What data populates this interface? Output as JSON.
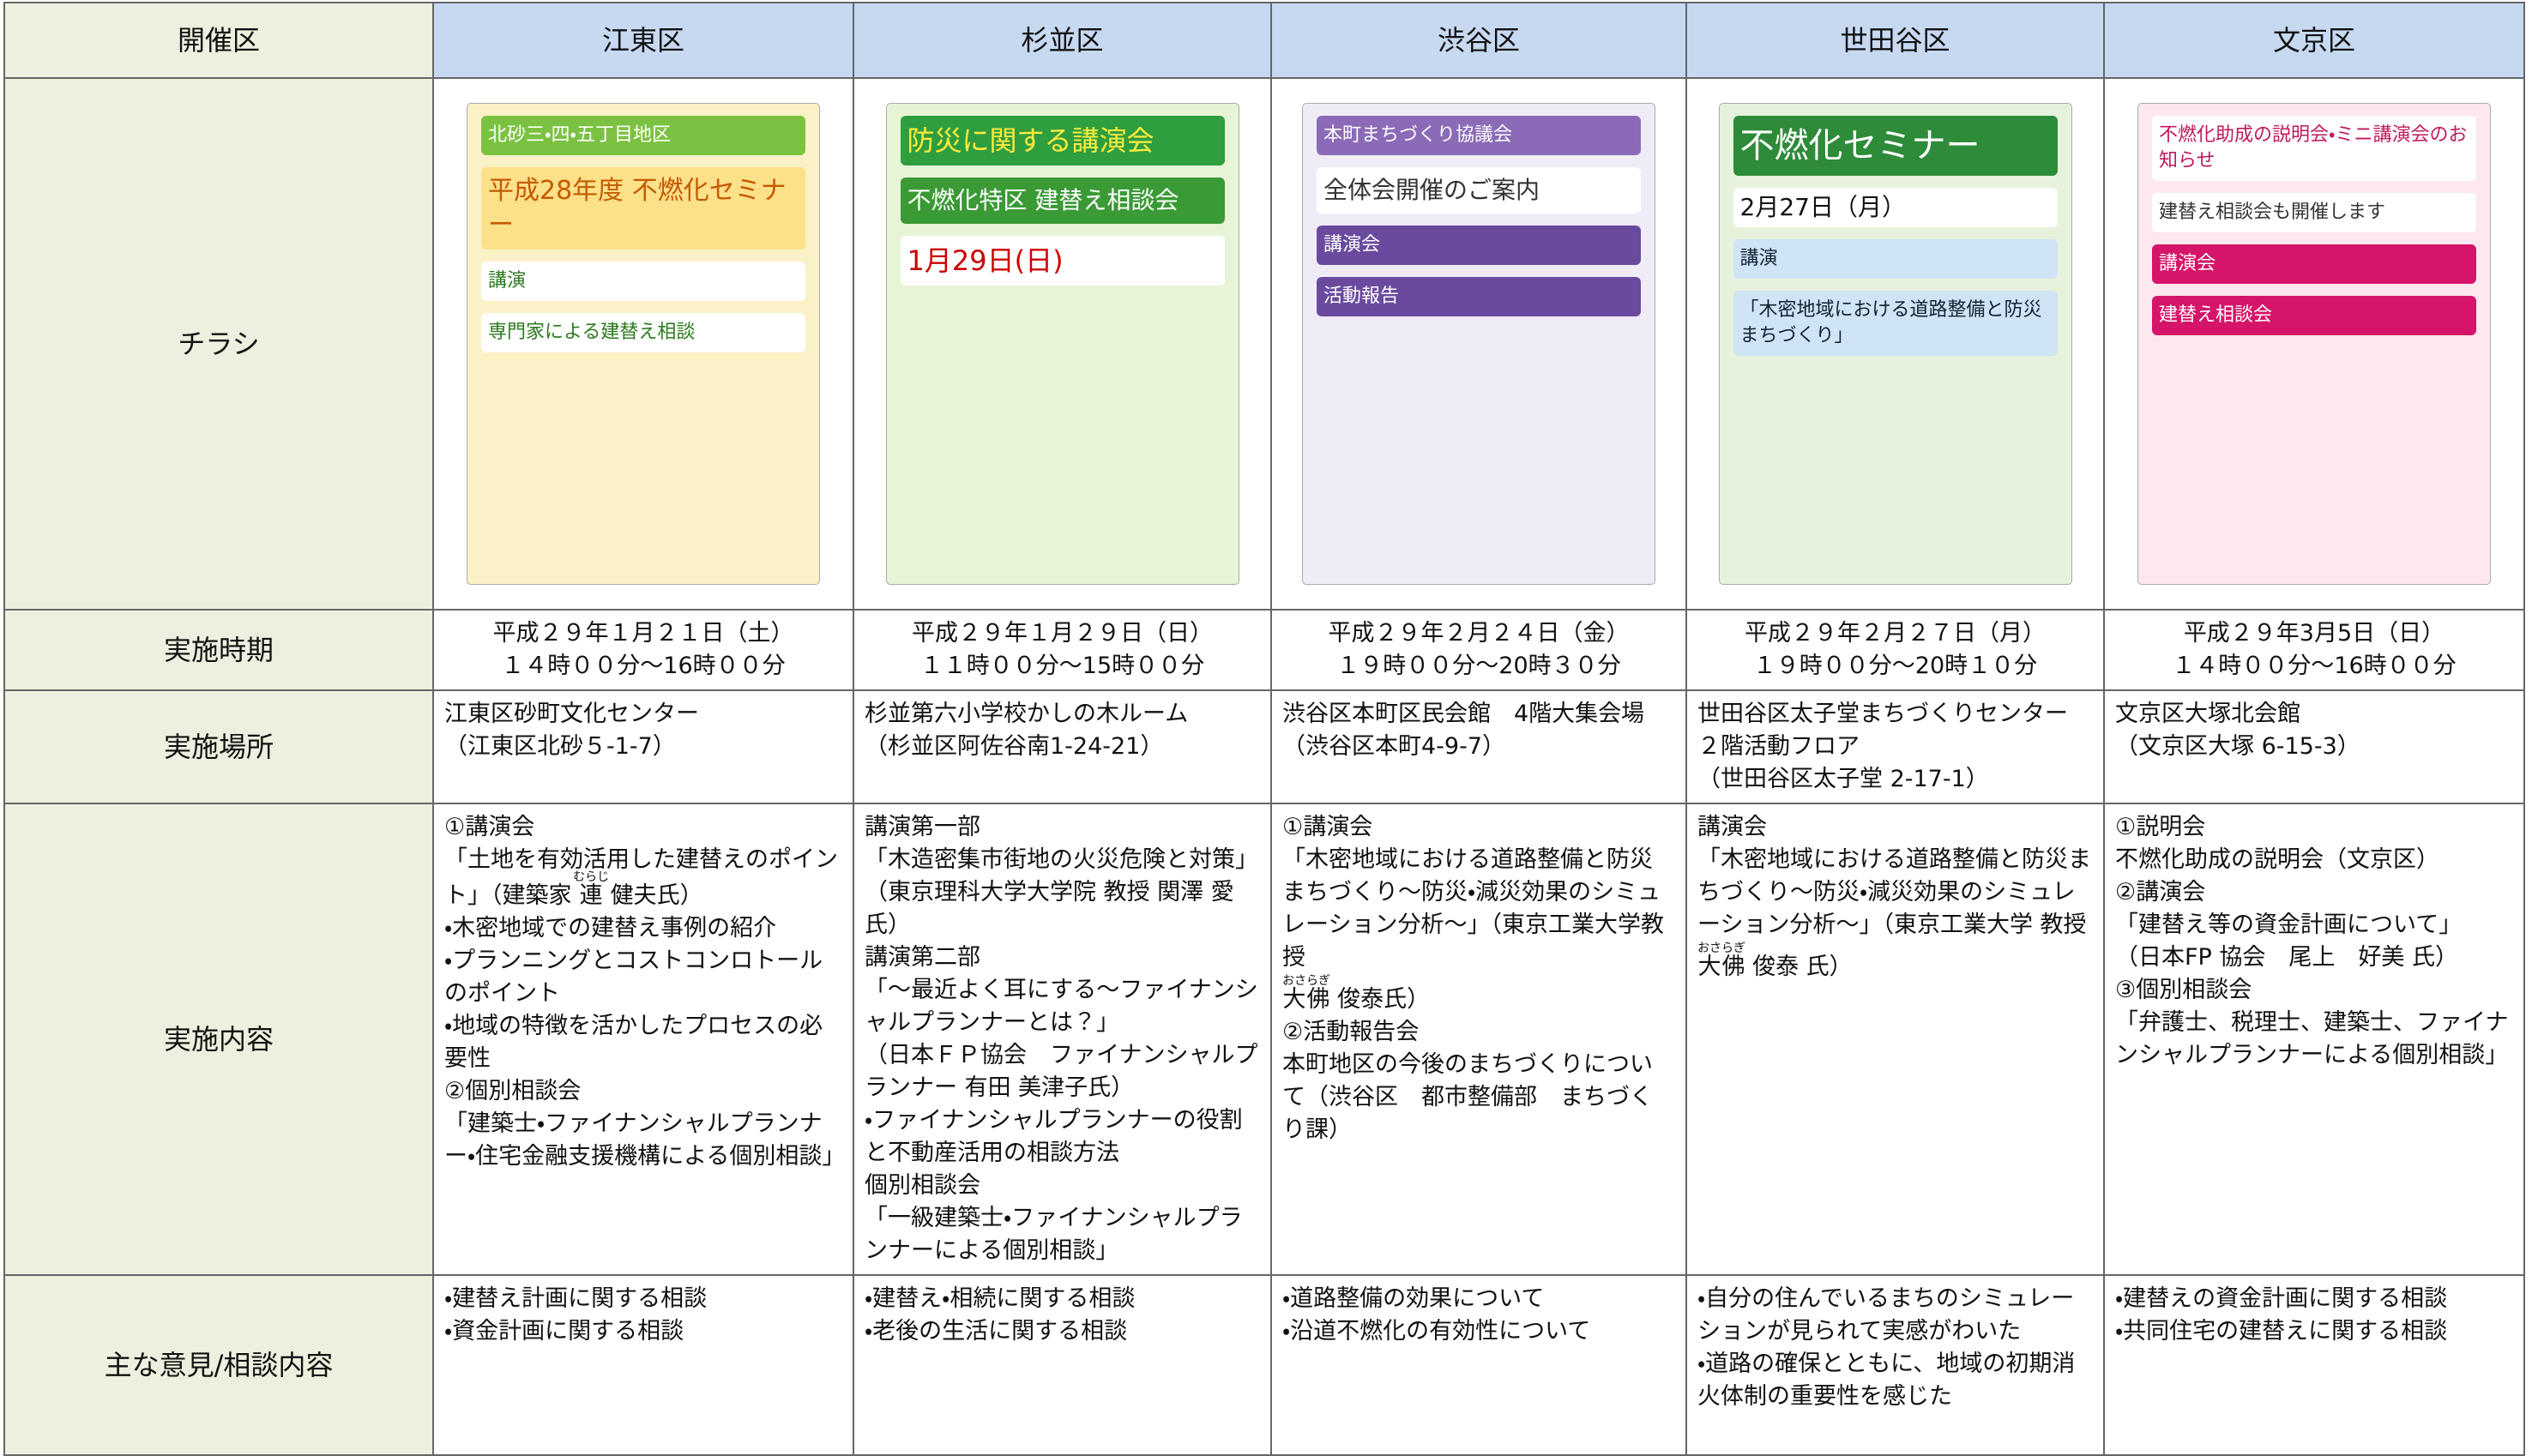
{
  "table": {
    "header": [
      "開催区",
      "江東区",
      "杉並区",
      "渋谷区",
      "世田谷区",
      "文京区"
    ],
    "flyer_label": "チラシ",
    "flyers": [
      {
        "lines": [
          "北砂三・四・五丁目地区",
          "平成28年度 不燃化セミナー",
          "講演",
          "専門家による建替え相談"
        ]
      },
      {
        "lines": [
          "防災に関する講演会",
          "不燃化特区 建替え相談会",
          "1月29日(日)"
        ]
      },
      {
        "lines": [
          "本町まちづくり協議会",
          "全体会開催のご案内",
          "講演会",
          "活動報告"
        ]
      },
      {
        "lines": [
          "不燃化セミナー",
          "2月27日（月）",
          "講演",
          "「木密地域における道路整備と防災まちづくり」"
        ]
      },
      {
        "lines": [
          "不燃化助成の説明会・ミニ講演会のお知らせ",
          "建替え相談会も開催します",
          "講演会",
          "建替え相談会"
        ]
      }
    ],
    "rows": [
      {
        "label": "実施時期",
        "cells": [
          [
            "平成２９年１月２１日（土）",
            "１４時００分～16時００分"
          ],
          [
            "平成２９年１月２９日（日）",
            "１１時００分～15時００分"
          ],
          [
            "平成２９年２月２４日（金）",
            "１９時００分～20時３０分"
          ],
          [
            "平成２９年２月２７日（月）",
            "１９時００分～20時１０分"
          ],
          [
            "平成２９年3月5日（日）",
            "１４時００分～16時００分"
          ]
        ]
      },
      {
        "label": "実施場所",
        "cells": [
          [
            "江東区砂町文化センター",
            "（江東区北砂５-1-7）"
          ],
          [
            "杉並第六小学校かしの木ルーム",
            "（杉並区阿佐谷南1-24-21）"
          ],
          [
            "渋谷区本町区民会館　4階大集会場",
            "（渋谷区本町4-9-7）"
          ],
          [
            "世田谷区太子堂まちづくりセンター　２階活動フロア",
            "（世田谷区太子堂 2-17-1）"
          ],
          [
            "文京区大塚北会館",
            "（文京区大塚 6-15-3）"
          ]
        ]
      },
      {
        "label": "実施内容",
        "cells": [
          [
            "①講演会",
            [
              "「土地を有効活用した建替えのポイント」（建築家 ",
              {
                "rb": "連",
                "rt": "むらじ"
              },
              " 健夫氏）"
            ],
            "・木密地域での建替え事例の紹介",
            "・プランニングとコストコンロトールのポイント",
            "・地域の特徴を活かしたプロセスの必要性",
            "②個別相談会",
            "「建築士・ファイナンシャルプランナー・住宅金融支援機構による個別相談」"
          ],
          [
            "講演第一部",
            "「木造密集市街地の火災危険と対策」",
            "（東京理科大学大学院 教授 関澤 愛氏）",
            "講演第二部",
            "「～最近よく耳にする～ファイナンシャルプランナーとは？」",
            "（日本ＦＰ協会　ファイナンシャルプランナー 有田 美津子氏）",
            "・ファイナンシャルプランナーの役割と不動産活用の相談方法",
            "個別相談会",
            "「一級建築士・ファイナンシャルプランナーによる個別相談」"
          ],
          [
            "①講演会",
            "「木密地域における道路整備と防災まちづくり～防災・減災効果のシミュレーション分析～」（東京工業大学教授",
            [
              {
                "rb": "大佛",
                "rt": "おさらぎ"
              },
              " 俊泰氏）"
            ],
            "②活動報告会",
            "本町地区の今後のまちづくりについて（渋谷区　都市整備部　まちづくり課）"
          ],
          [
            "講演会",
            "「木密地域における道路整備と防災まちづくり～防災・減災効果のシミュレーション分析～」（東京工業大学 教授",
            [
              {
                "rb": "大佛",
                "rt": "おさらぎ"
              },
              " 俊泰 氏）"
            ]
          ],
          [
            "①説明会",
            "不燃化助成の説明会（文京区）",
            "②講演会",
            "「建替え等の資金計画について」",
            "（日本FP 協会　尾上　好美 氏）",
            "③個別相談会",
            "「弁護士、税理士、建築士、ファイナンシャルプランナーによる個別相談」"
          ]
        ]
      },
      {
        "label": "主な意見/相談内容",
        "cells": [
          [
            "・建替え計画に関する相談",
            "・資金計画に関する相談"
          ],
          [
            "・建替え・相続に関する相談",
            "・老後の生活に関する相談"
          ],
          [
            "・道路整備の効果について",
            "・沿道不燃化の有効性について"
          ],
          [
            "・自分の住んでいるまちのシミュレーションが見られて実感がわいた",
            "・道路の確保とともに、地域の初期消火体制の重要性を感じた"
          ],
          [
            "・建替えの資金計画に関する相談",
            "・共同住宅の建替えに関する相談"
          ]
        ]
      }
    ]
  }
}
